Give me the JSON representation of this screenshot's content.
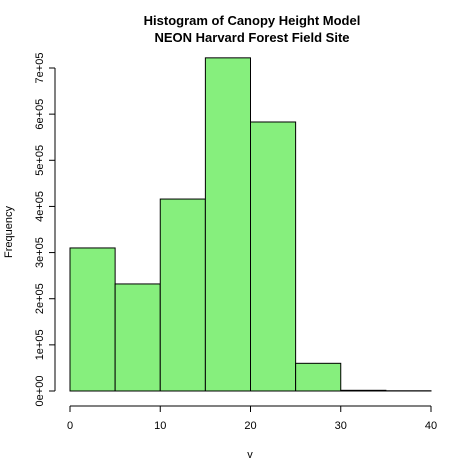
{
  "chart_data": {
    "type": "bar",
    "title": "Histogram of Canopy Height Model",
    "subtitle": "NEON Harvard Forest Field Site",
    "xlabel": "v",
    "ylabel": "Frequency",
    "bins": [
      {
        "x0": 0,
        "x1": 5,
        "count": 310000
      },
      {
        "x0": 5,
        "x1": 10,
        "count": 232000
      },
      {
        "x0": 10,
        "x1": 15,
        "count": 416000
      },
      {
        "x0": 15,
        "x1": 20,
        "count": 722000
      },
      {
        "x0": 20,
        "x1": 25,
        "count": 583000
      },
      {
        "x0": 25,
        "x1": 30,
        "count": 60000
      },
      {
        "x0": 30,
        "x1": 35,
        "count": 1500
      },
      {
        "x0": 35,
        "x1": 40,
        "count": 500
      }
    ],
    "xlim": [
      0,
      40
    ],
    "ylim": [
      0,
      700000
    ],
    "xticks": [
      0,
      10,
      20,
      30,
      40
    ],
    "xtick_labels": [
      "0",
      "10",
      "20",
      "30",
      "40"
    ],
    "yticks": [
      0,
      100000,
      200000,
      300000,
      400000,
      500000,
      600000,
      700000
    ],
    "ytick_labels": [
      "0e+00",
      "1e+05",
      "2e+05",
      "3e+05",
      "4e+05",
      "5e+05",
      "6e+05",
      "7e+05"
    ],
    "bar_color": "#86ef7d",
    "bar_stroke": "#000000",
    "grid": false
  }
}
